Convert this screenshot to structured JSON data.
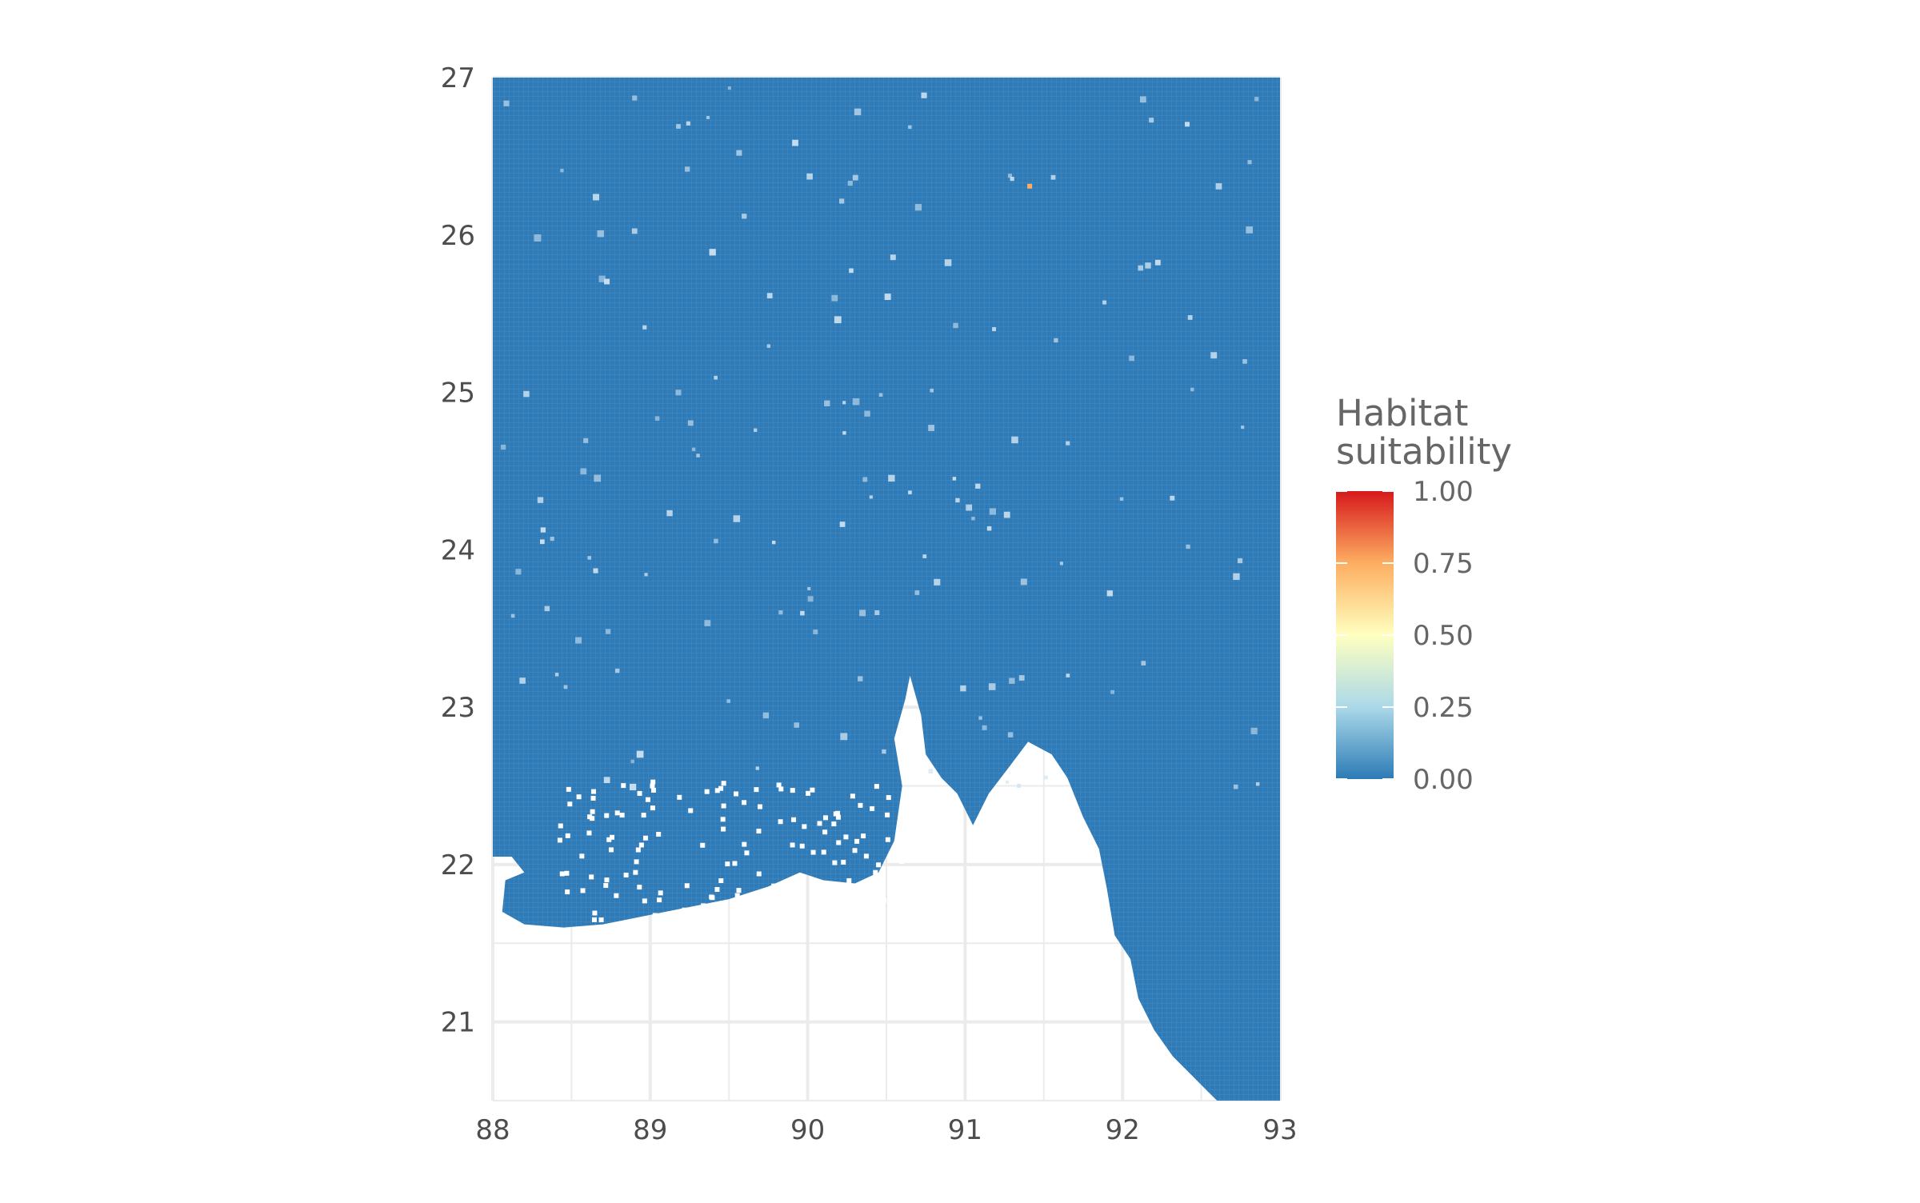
{
  "chart_data": {
    "type": "heatmap",
    "title": "",
    "xlabel": "",
    "ylabel": "",
    "xlim": [
      88,
      93
    ],
    "ylim": [
      20.5,
      27
    ],
    "x_ticks": [
      "88",
      "89",
      "90",
      "91",
      "92",
      "93"
    ],
    "y_ticks": [
      "21",
      "22",
      "23",
      "24",
      "25",
      "26",
      "27"
    ],
    "grid": true,
    "value_range": [
      0,
      1
    ],
    "dominant_value": 0.03,
    "hotspots": [
      {
        "lon": 91.41,
        "lat": 26.31,
        "value": 0.75
      }
    ],
    "legend": {
      "title_line1": "Habitat",
      "title_line2": "suitability",
      "placement": "right",
      "breaks": [
        "1.00",
        "0.75",
        "0.50",
        "0.25",
        "0.00"
      ],
      "break_values": [
        1.0,
        0.75,
        0.5,
        0.25,
        0.0
      ],
      "palette": [
        "#2C7BB6",
        "#ABD9E9",
        "#FFFFBF",
        "#FDAE61",
        "#D7191C"
      ]
    },
    "colors": {
      "background": "#ffffff",
      "grid": "#ebebeb",
      "tick_text": "#4d4d4d",
      "legend_text": "#666666"
    }
  }
}
